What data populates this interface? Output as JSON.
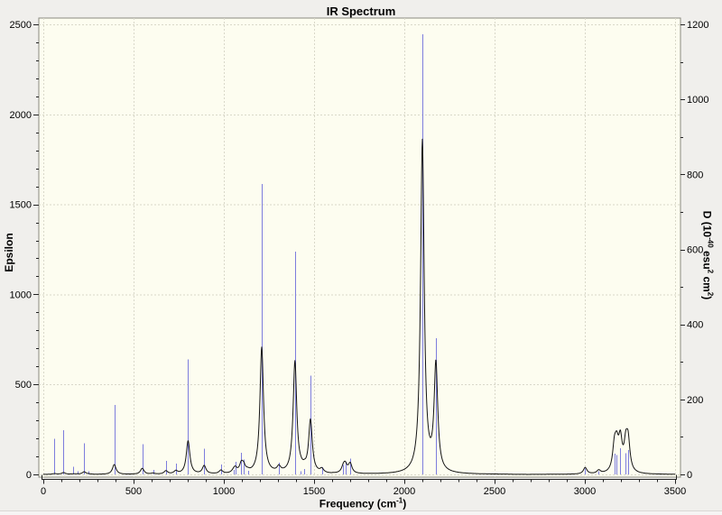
{
  "window": {
    "background": "#f0efec"
  },
  "chart_data": {
    "type": "line",
    "title": "IR Spectrum",
    "plot_bg": "#fdfdf0",
    "grid_color": "#d9d8c9",
    "axes": {
      "x": {
        "label_main": "Frequency (cm",
        "label_sup": "-1",
        "label_end": ")",
        "min": 0,
        "max": 3500,
        "major_tick": 500,
        "minor_tick": 100,
        "tick_labels": [
          "0",
          "500",
          "1000",
          "1500",
          "2000",
          "2500",
          "3000",
          "3500"
        ]
      },
      "y_left": {
        "label": "Epsilon",
        "min": 0,
        "max": 2500,
        "major_tick": 500,
        "minor_tick": 100,
        "tick_labels": [
          "0",
          "500",
          "1000",
          "1500",
          "2000",
          "2500"
        ]
      },
      "y_right": {
        "label_p1": "D (10",
        "label_s1": "-40",
        "label_p2": " esu",
        "label_s2": "2",
        "label_p3": " cm",
        "label_s3": "2",
        "label_p4": ")",
        "min": 0,
        "max": 1200,
        "major_tick": 200,
        "minor_tick": 100,
        "tick_labels": [
          "0",
          "200",
          "400",
          "600",
          "800",
          "1000",
          "1200"
        ]
      }
    },
    "series": [
      {
        "name": "dipole-strength-sticks",
        "type": "stick",
        "axis": "right",
        "color": "#7d7ddd",
        "points": [
          [
            62,
            95
          ],
          [
            112,
            118
          ],
          [
            165,
            21
          ],
          [
            188,
            8
          ],
          [
            226,
            83
          ],
          [
            252,
            9
          ],
          [
            393,
            185
          ],
          [
            548,
            80
          ],
          [
            608,
            12
          ],
          [
            679,
            36
          ],
          [
            734,
            29
          ],
          [
            802,
            307
          ],
          [
            891,
            68
          ],
          [
            984,
            26
          ],
          [
            1053,
            12
          ],
          [
            1063,
            34
          ],
          [
            1097,
            58
          ],
          [
            1110,
            40
          ],
          [
            1133,
            10
          ],
          [
            1210,
            774
          ],
          [
            1305,
            31
          ],
          [
            1394,
            594
          ],
          [
            1427,
            9
          ],
          [
            1447,
            14
          ],
          [
            1480,
            263
          ],
          [
            1543,
            19
          ],
          [
            1662,
            25
          ],
          [
            1673,
            34
          ],
          [
            1700,
            42
          ],
          [
            2100,
            1173
          ],
          [
            2175,
            363
          ],
          [
            3002,
            16
          ],
          [
            3077,
            8
          ],
          [
            3164,
            55
          ],
          [
            3177,
            52
          ],
          [
            3197,
            70
          ],
          [
            3227,
            57
          ],
          [
            3240,
            65
          ]
        ]
      },
      {
        "name": "epsilon-curve",
        "type": "lorentzian_broadened_line",
        "axis": "left",
        "color": "#141414",
        "derived_from": "dipole-strength-sticks",
        "hwhm_cm1": 12,
        "epsilon_scale": 0.00075,
        "peak_epsilon_at_2100": 1850
      }
    ]
  }
}
